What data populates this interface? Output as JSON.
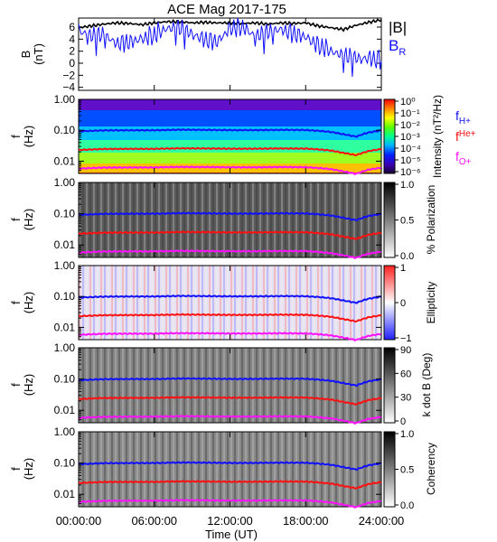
{
  "title": "ACE Mag 2017-175",
  "colors": {
    "B_total": "#000000",
    "B_R": "#1010ff",
    "f_H": "#1010ff",
    "f_He": "#ff1010",
    "f_O": "#ff10ff"
  },
  "x_axis": {
    "label": "Time (UT)",
    "ticks": [
      "00:00:00",
      "06:00:00",
      "12:00:00",
      "18:00:00",
      "24:00:00"
    ],
    "tick_hours": [
      0,
      6,
      12,
      18,
      24
    ],
    "range_hours": [
      0,
      24
    ]
  },
  "chart_data": [
    {
      "type": "line",
      "ylabel": "B\n(nT)",
      "ylim": [
        -4.5,
        7.5
      ],
      "yticks": [
        6,
        4,
        2,
        0,
        -2,
        -4
      ],
      "ytick_labels": [
        "6",
        "4",
        "2",
        "0",
        "−2",
        "−4"
      ],
      "legend": [
        "|B|",
        "B_R"
      ],
      "series": [
        {
          "name": "|B|",
          "x_hours": [
            0,
            1,
            2,
            3,
            4,
            5,
            6,
            7,
            8,
            9,
            10,
            11,
            12,
            13,
            14,
            15,
            16,
            17,
            18,
            19,
            20,
            21,
            22,
            23,
            24
          ],
          "values": [
            5.9,
            6.2,
            6.5,
            6.7,
            6.6,
            6.4,
            6.7,
            6.9,
            6.9,
            6.7,
            6.8,
            6.7,
            6.7,
            6.6,
            6.7,
            6.5,
            6.7,
            6.6,
            6.7,
            6.2,
            5.9,
            5.6,
            6.3,
            6.8,
            7.2
          ]
        },
        {
          "name": "B_R",
          "x_hours": [
            0,
            1,
            2,
            3,
            4,
            5,
            6,
            7,
            8,
            9,
            10,
            11,
            12,
            13,
            14,
            15,
            16,
            17,
            18,
            19,
            20,
            21,
            22,
            23,
            24
          ],
          "values": [
            5.3,
            4.6,
            4.8,
            3.2,
            3.4,
            4.0,
            4.5,
            5.8,
            5.9,
            4.9,
            3.8,
            3.5,
            5.7,
            5.9,
            4.5,
            5.2,
            5.6,
            4.8,
            4.3,
            2.8,
            2.0,
            1.3,
            0.9,
            0.7,
            0.4
          ]
        }
      ]
    },
    {
      "type": "heatmap",
      "ylabel": "f\n(Hz)",
      "scale": "log",
      "ylim": [
        0.004,
        1.0
      ],
      "yticks": [
        1.0,
        0.1,
        0.01
      ],
      "ytick_labels": [
        "1.00",
        "0.10",
        "0.01"
      ],
      "colorbar": {
        "label": "Intensity (nT²/Hz)",
        "tick_labels": [
          "10⁰",
          "10⁻¹",
          "10⁻²",
          "10⁻³",
          "10⁻⁴",
          "10⁻⁵",
          "10⁻⁶"
        ]
      },
      "legend": [
        "fH+",
        "fHe+",
        "fO+"
      ]
    },
    {
      "type": "heatmap",
      "ylabel": "f\n(Hz)",
      "scale": "log",
      "ylim": [
        0.004,
        1.0
      ],
      "yticks": [
        1.0,
        0.1,
        0.01
      ],
      "ytick_labels": [
        "1.00",
        "0.10",
        "0.01"
      ],
      "colorbar": {
        "label": "% Polarization",
        "tick_labels": [
          "1.0",
          "0.5",
          "0.0"
        ]
      }
    },
    {
      "type": "heatmap",
      "ylabel": "f\n(Hz)",
      "scale": "log",
      "ylim": [
        0.004,
        1.0
      ],
      "yticks": [
        1.0,
        0.1,
        0.01
      ],
      "ytick_labels": [
        "1.00",
        "0.10",
        "0.01"
      ],
      "colorbar": {
        "label": "Ellipticity",
        "tick_labels": [
          "1",
          "0",
          "−1"
        ]
      }
    },
    {
      "type": "heatmap",
      "ylabel": "f\n(Hz)",
      "scale": "log",
      "ylim": [
        0.004,
        1.0
      ],
      "yticks": [
        1.0,
        0.1,
        0.01
      ],
      "ytick_labels": [
        "1.00",
        "0.10",
        "0.01"
      ],
      "colorbar": {
        "label": "k dot B (Deg)",
        "tick_labels": [
          "90",
          "60",
          "30",
          "0"
        ]
      }
    },
    {
      "type": "heatmap",
      "ylabel": "f\n(Hz)",
      "scale": "log",
      "ylim": [
        0.004,
        1.0
      ],
      "yticks": [
        1.0,
        0.1,
        0.01
      ],
      "ytick_labels": [
        "1.00",
        "0.10",
        "0.01"
      ],
      "colorbar": {
        "label": "Coherency",
        "tick_labels": [
          "1.0",
          "0.5",
          "0.0"
        ]
      }
    }
  ],
  "gyrofrequency_lines": {
    "x_hours": [
      0,
      2,
      4,
      6,
      8,
      10,
      12,
      14,
      16,
      18,
      19,
      20,
      21,
      22,
      23,
      24
    ],
    "fH_Hz": [
      0.092,
      0.099,
      0.1,
      0.1,
      0.104,
      0.103,
      0.101,
      0.101,
      0.103,
      0.102,
      0.096,
      0.088,
      0.074,
      0.062,
      0.085,
      0.098
    ]
  }
}
